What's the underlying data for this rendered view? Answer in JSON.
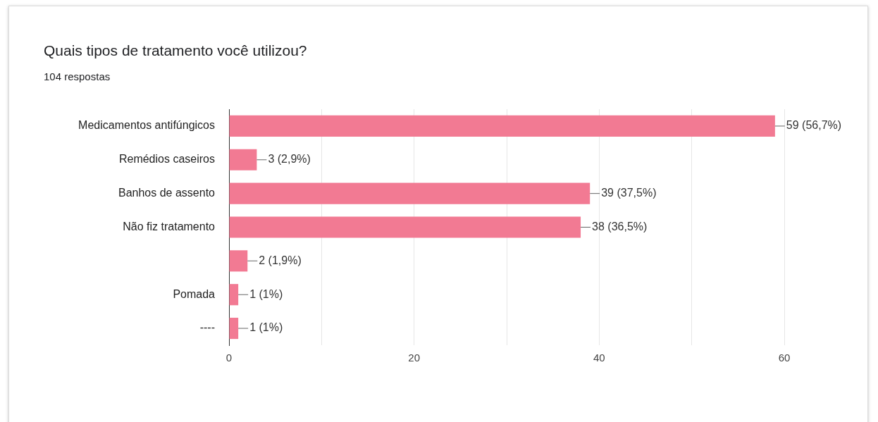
{
  "chart_data": {
    "type": "bar",
    "orientation": "horizontal",
    "title": "Quais tipos de tratamento você utilizou?",
    "subtitle": "104 respostas",
    "categories": [
      "Medicamentos antifúngicos",
      "Remédios caseiros",
      "Banhos de assento",
      "Não fiz tratamento",
      null,
      "Pomada",
      "----"
    ],
    "values": [
      59,
      3,
      39,
      38,
      2,
      1,
      1
    ],
    "value_labels": [
      "59 (56,7%)",
      "3 (2,9%)",
      "39 (37,5%)",
      "38 (36,5%)",
      "2 (1,9%)",
      "1 (1%)",
      "1 (1%)"
    ],
    "color": "#f27a93",
    "xlim": [
      0,
      60
    ],
    "xticks": [
      0,
      {
        "value": 10,
        "label": null
      },
      20,
      {
        "value": 30,
        "label": null
      },
      40,
      {
        "value": 50,
        "label": null
      },
      60
    ],
    "grid": "x"
  }
}
